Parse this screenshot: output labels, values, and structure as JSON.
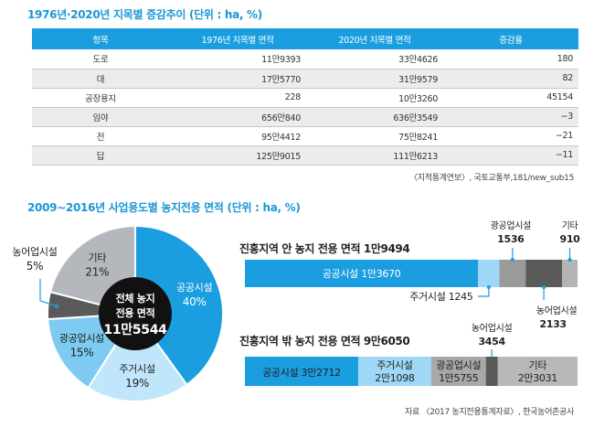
{
  "table_title": "1976년·2020년 지목별 증감추이 (단위 : ha, %)",
  "table": {
    "headers": [
      "항목",
      "1976년 지목별 면적",
      "2020년 지목별 면적",
      "증감율"
    ],
    "rows": [
      [
        "도로",
        "11만9393",
        "33만4626",
        "180"
      ],
      [
        "대",
        "17만5770",
        "31만9579",
        "82"
      ],
      [
        "공장용지",
        "228",
        "10만3260",
        "45154"
      ],
      [
        "임야",
        "656만840",
        "636만3549",
        "−3"
      ],
      [
        "전",
        "95만4412",
        "75만8241",
        "−21"
      ],
      [
        "답",
        "125만9015",
        "111만6213",
        "−11"
      ]
    ]
  },
  "table_source": "〈지적통계연보〉, 국토교통부,181/new_sub15",
  "chart_title": "2009∼2016년 사업용도별 농지전용 면적 (단위 : ha, %)",
  "chart_source": "자료 〈2017 농지전용통계자료〉, 한국농어촌공사",
  "colors": {
    "public": "#1a9ee0",
    "residential": "#9ed8f6",
    "industrial": "#c8ccd0",
    "agri": "#5a5a5a",
    "other": "#b0b0b0",
    "center": "#111111"
  },
  "chart_data": [
    {
      "type": "pie",
      "center_label": [
        "전체 농지",
        "전용 면적",
        "11만5544"
      ],
      "slices": [
        {
          "label": "공공시설",
          "value": 40,
          "display": "40%",
          "color": "#1a9ee0"
        },
        {
          "label": "주거시설",
          "value": 19,
          "display": "19%",
          "color": "#bfe6fa"
        },
        {
          "label": "광공업시설",
          "value": 15,
          "display": "15%",
          "color": "#7ecbf2"
        },
        {
          "label": "농어업시설",
          "value": 5,
          "display": "5%",
          "color": "#5a5a5a"
        },
        {
          "label": "기타",
          "value": 21,
          "display": "21%",
          "color": "#b4b8bc"
        }
      ]
    },
    {
      "type": "bar",
      "title": "진흥지역 안 농지 전용 면적 1만9494",
      "segments": [
        {
          "label": "공공시설",
          "display": "1만3670",
          "value": 13670,
          "color": "#1a9ee0"
        },
        {
          "label": "주거시설",
          "display": "1245",
          "value": 1245,
          "color": "#9ed8f6"
        },
        {
          "label": "광공업시설",
          "display": "1536",
          "value": 1536,
          "color": "#9a9a9a"
        },
        {
          "label": "농어업시설",
          "display": "2133",
          "value": 2133,
          "color": "#5a5a5a"
        },
        {
          "label": "기타",
          "display": "910",
          "value": 910,
          "color": "#b4b4b4"
        }
      ]
    },
    {
      "type": "bar",
      "title": "진흥지역 밖 농지 전용 면적 9만6050",
      "segments": [
        {
          "label": "공공시설",
          "display": "3만2712",
          "value": 32712,
          "color": "#1a9ee0"
        },
        {
          "label": "주거시설",
          "display": "2만1098",
          "value": 21098,
          "color": "#9ed8f6"
        },
        {
          "label": "광공업시설",
          "display": "1만5755",
          "value": 15755,
          "color": "#a8a8a8"
        },
        {
          "label": "농어업시설",
          "display": "3454",
          "value": 3454,
          "color": "#5a5a5a"
        },
        {
          "label": "기타",
          "display": "2만3031",
          "value": 23031,
          "color": "#b8b8b8"
        }
      ]
    }
  ]
}
